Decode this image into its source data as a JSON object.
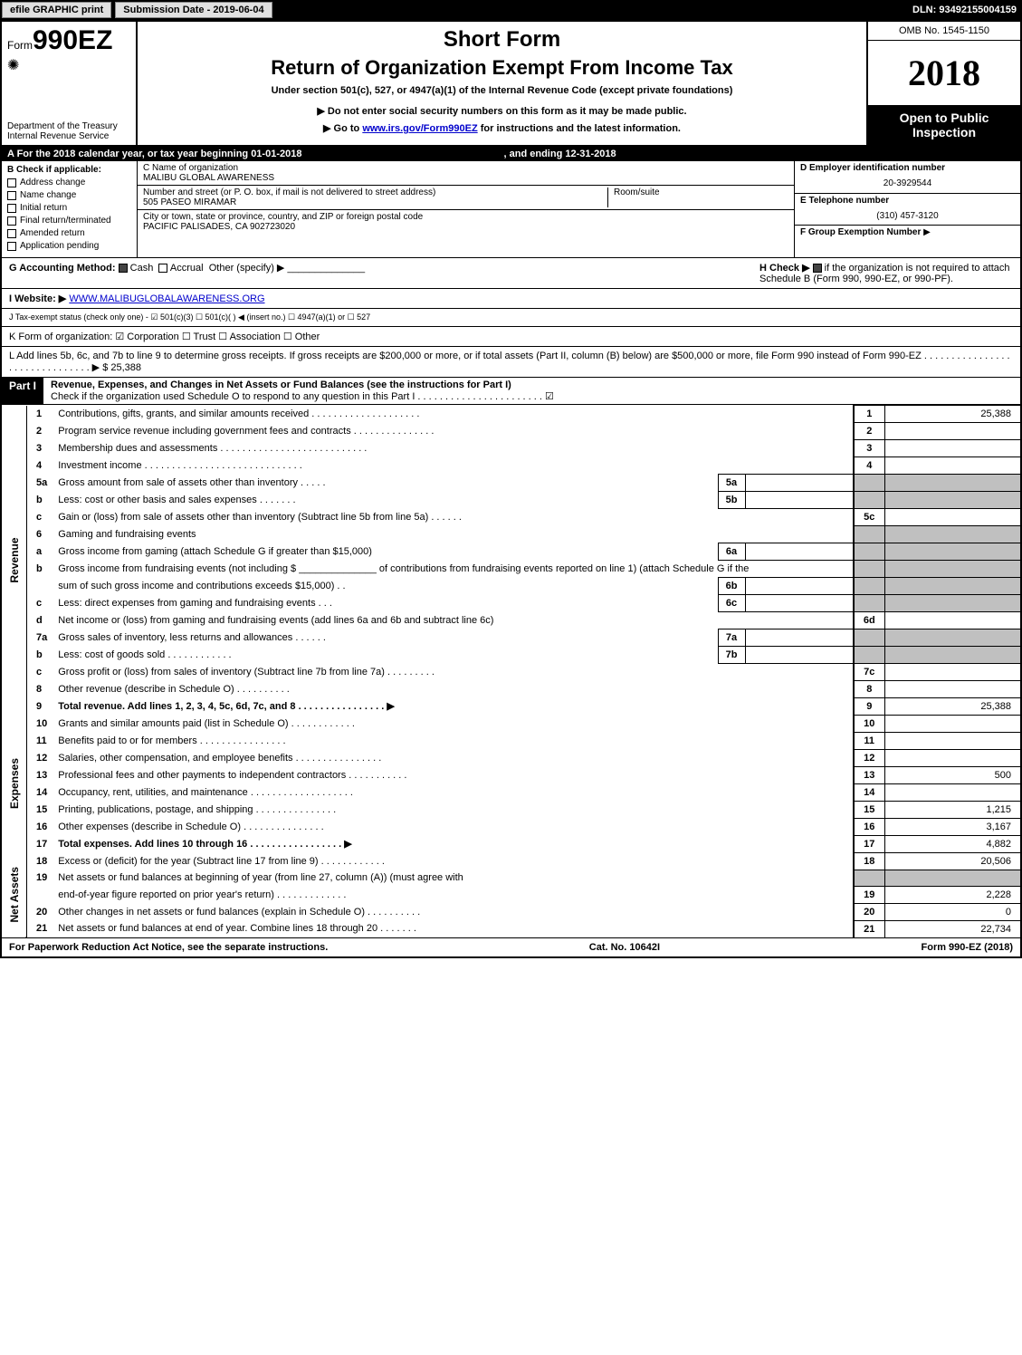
{
  "topbar": {
    "efile": "efile GRAPHIC print",
    "submission": "Submission Date - 2019-06-04",
    "dln": "DLN: 93492155004159"
  },
  "header": {
    "form_prefix": "Form",
    "form_num": "990EZ",
    "dept1": "Department of the Treasury",
    "dept2": "Internal Revenue Service",
    "short_form": "Short Form",
    "return_title": "Return of Organization Exempt From Income Tax",
    "under": "Under section 501(c), 527, or 4947(a)(1) of the Internal Revenue Code (except private foundations)",
    "note1": "▶ Do not enter social security numbers on this form as it may be made public.",
    "note2_pre": "▶ Go to ",
    "note2_link": "www.irs.gov/Form990EZ",
    "note2_post": " for instructions and the latest information.",
    "omb": "OMB No. 1545-1150",
    "year": "2018",
    "open1": "Open to Public",
    "open2": "Inspection"
  },
  "rowA": {
    "text_pre": "A  For the 2018 calendar year, or tax year beginning 01-01-2018",
    "text_mid": ", and ending 12-31-2018"
  },
  "colB": {
    "title": "B  Check if applicable:",
    "items": [
      "Address change",
      "Name change",
      "Initial return",
      "Final return/terminated",
      "Amended return",
      "Application pending"
    ]
  },
  "colC": {
    "c_label": "C Name of organization",
    "c_name": "MALIBU GLOBAL AWARENESS",
    "street_label": "Number and street (or P. O. box, if mail is not delivered to street address)",
    "street": "505 PASEO MIRAMAR",
    "room_label": "Room/suite",
    "city_label": "City or town, state or province, country, and ZIP or foreign postal code",
    "city": "PACIFIC PALISADES, CA  902723020"
  },
  "colD": {
    "d_label": "D Employer identification number",
    "d_val": "20-3929544",
    "e_label": "E Telephone number",
    "e_val": "(310) 457-3120",
    "f_label": "F Group Exemption Number",
    "f_arrow": "▶"
  },
  "rowG": {
    "g_text": "G Accounting Method:",
    "g_cash": "Cash",
    "g_accrual": "Accrual",
    "g_other": "Other (specify) ▶",
    "h_text_pre": "H  Check ▶",
    "h_text": "if the organization is not required to attach Schedule B (Form 990, 990-EZ, or 990-PF)."
  },
  "rowI": {
    "label": "I Website: ▶",
    "val": "WWW.MALIBUGLOBALAWARENESS.ORG"
  },
  "rowJ": {
    "text": "J Tax-exempt status (check only one) -  ☑ 501(c)(3)  ☐ 501(c)(  ) ◀ (insert no.)  ☐ 4947(a)(1) or  ☐ 527"
  },
  "rowK": {
    "text": "K Form of organization:   ☑ Corporation   ☐ Trust   ☐ Association   ☐ Other"
  },
  "rowL": {
    "text": "L Add lines 5b, 6c, and 7b to line 9 to determine gross receipts. If gross receipts are $200,000 or more, or if total assets (Part II, column (B) below) are $500,000 or more, file Form 990 instead of Form 990-EZ  . . . . . . . . . . . . . . . . . . . . . . . . . . . . . . .  ▶ $ 25,388"
  },
  "partI": {
    "label": "Part I",
    "title": "Revenue, Expenses, and Changes in Net Assets or Fund Balances (see the instructions for Part I)",
    "sub": "Check if the organization used Schedule O to respond to any question in this Part I . . . . . . . . . . . . . . . . . . . . . . .  ☑"
  },
  "sections": {
    "revenue": "Revenue",
    "expenses": "Expenses",
    "netassets": "Net Assets"
  },
  "lines": [
    {
      "n": "1",
      "desc": "Contributions, gifts, grants, and similar amounts received  . . . . . . . . . . . . . . . . . . . .",
      "rn": "1",
      "rv": "25,388"
    },
    {
      "n": "2",
      "desc": "Program service revenue including government fees and contracts  . . . . . . . . . . . . . . .",
      "rn": "2",
      "rv": ""
    },
    {
      "n": "3",
      "desc": "Membership dues and assessments  . . . . . . . . . . . . . . . . . . . . . . . . . . .",
      "rn": "3",
      "rv": ""
    },
    {
      "n": "4",
      "desc": "Investment income  . . . . . . . . . . . . . . . . . . . . . . . . . . . . .",
      "rn": "4",
      "rv": ""
    },
    {
      "n": "5a",
      "desc": "Gross amount from sale of assets other than inventory  . . . . .",
      "mini": "5a"
    },
    {
      "n": "b",
      "desc": "Less: cost or other basis and sales expenses  . . . . . . .",
      "mini": "5b"
    },
    {
      "n": "c",
      "desc": "Gain or (loss) from sale of assets other than inventory (Subtract line 5b from line 5a)                     . . . . . .",
      "rn": "5c",
      "rv": ""
    },
    {
      "n": "6",
      "desc": "Gaming and fundraising events",
      "shaded": true
    },
    {
      "n": "a",
      "desc": "Gross income from gaming (attach Schedule G if greater than $15,000)",
      "mini": "6a"
    },
    {
      "n": "b",
      "desc": "Gross income from fundraising events (not including $ ______________ of contributions from fundraising events reported on line 1) (attach Schedule G if the",
      "nobox": true
    },
    {
      "n": "",
      "desc": "sum of such gross income and contributions exceeds $15,000)         . .",
      "mini": "6b"
    },
    {
      "n": "c",
      "desc": "Less: direct expenses from gaming and fundraising events              . . .",
      "mini": "6c"
    },
    {
      "n": "d",
      "desc": "Net income or (loss) from gaming and fundraising events (add lines 6a and 6b and subtract line 6c)",
      "rn": "6d",
      "rv": ""
    },
    {
      "n": "7a",
      "desc": "Gross sales of inventory, less returns and allowances              . . . . . .",
      "mini": "7a"
    },
    {
      "n": "b",
      "desc": "Less: cost of goods sold                                   . . . . . . . . . . . .",
      "mini": "7b"
    },
    {
      "n": "c",
      "desc": "Gross profit or (loss) from sales of inventory (Subtract line 7b from line 7a)                    . . . . . . . . .",
      "rn": "7c",
      "rv": ""
    },
    {
      "n": "8",
      "desc": "Other revenue (describe in Schedule O)                                                          . . . . . . . . . .",
      "rn": "8",
      "rv": ""
    },
    {
      "n": "9",
      "desc": "Total revenue. Add lines 1, 2, 3, 4, 5c, 6d, 7c, and 8              . . . . . . . . . . . . . . . .   ▶",
      "rn": "9",
      "rv": "25,388",
      "bold": true
    }
  ],
  "exp_lines": [
    {
      "n": "10",
      "desc": "Grants and similar amounts paid (list in Schedule O)                          . . . . . . . . . . . .",
      "rn": "10",
      "rv": ""
    },
    {
      "n": "11",
      "desc": "Benefits paid to or for members                                        . . . . . . . . . . . . . . . .",
      "rn": "11",
      "rv": ""
    },
    {
      "n": "12",
      "desc": "Salaries, other compensation, and employee benefits             . . . . . . . . . . . . . . . .",
      "rn": "12",
      "rv": ""
    },
    {
      "n": "13",
      "desc": "Professional fees and other payments to independent contractors            . . . . . . . . . . .",
      "rn": "13",
      "rv": "500"
    },
    {
      "n": "14",
      "desc": "Occupancy, rent, utilities, and maintenance              . . . . . . . . . . . . . . . . . . .",
      "rn": "14",
      "rv": ""
    },
    {
      "n": "15",
      "desc": "Printing, publications, postage, and shipping                       . . . . . . . . . . . . . . .",
      "rn": "15",
      "rv": "1,215"
    },
    {
      "n": "16",
      "desc": "Other expenses (describe in Schedule O)                                . . . . . . . . . . . . . . .",
      "rn": "16",
      "rv": "3,167"
    },
    {
      "n": "17",
      "desc": "Total expenses. Add lines 10 through 16                      . . . . . . . . . . . . . . . . .   ▶",
      "rn": "17",
      "rv": "4,882",
      "bold": true
    }
  ],
  "na_lines": [
    {
      "n": "18",
      "desc": "Excess or (deficit) for the year (Subtract line 17 from line 9)                      . . . . . . . . . . . .",
      "rn": "18",
      "rv": "20,506"
    },
    {
      "n": "19",
      "desc": "Net assets or fund balances at beginning of year (from line 27, column (A)) (must agree with",
      "nobox": true,
      "shaded": true
    },
    {
      "n": "",
      "desc": "end-of-year figure reported on prior year's return)                        . . . . . . . . . . . . .",
      "rn": "19",
      "rv": "2,228"
    },
    {
      "n": "20",
      "desc": "Other changes in net assets or fund balances (explain in Schedule O)              . . . . . . . . . .",
      "rn": "20",
      "rv": "0"
    },
    {
      "n": "21",
      "desc": "Net assets or fund balances at end of year. Combine lines 18 through 20                     . . . . . . .",
      "rn": "21",
      "rv": "22,734"
    }
  ],
  "footer": {
    "left": "For Paperwork Reduction Act Notice, see the separate instructions.",
    "mid": "Cat. No. 10642I",
    "right": "Form 990-EZ (2018)"
  }
}
